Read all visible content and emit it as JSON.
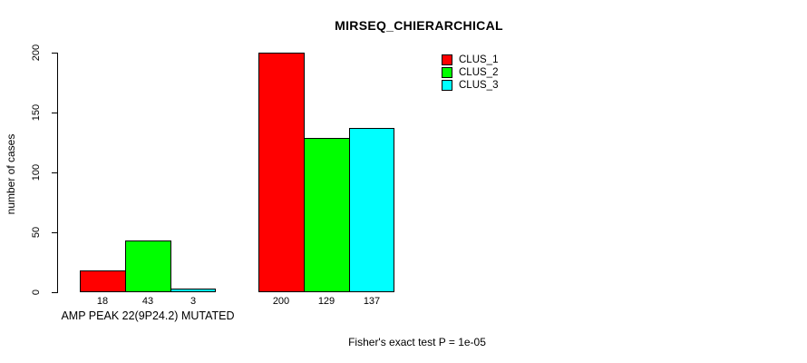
{
  "chart_data": {
    "type": "bar",
    "title": "MIRSEQ_CHIERARCHICAL",
    "xlabel": "",
    "ylabel": "number of cases",
    "ylim": [
      0,
      200
    ],
    "yticks": [
      0,
      50,
      100,
      150,
      200
    ],
    "grid": false,
    "legend_position": "top-right-inside",
    "categories": [
      "AMP PEAK 22(9P24.2) MUTATED",
      ""
    ],
    "series": [
      {
        "name": "CLUS_1",
        "color": "#ff0000",
        "values": [
          18,
          200
        ]
      },
      {
        "name": "CLUS_2",
        "color": "#00ff00",
        "values": [
          43,
          129
        ]
      },
      {
        "name": "CLUS_3",
        "color": "#00ffff",
        "values": [
          3,
          137
        ]
      }
    ],
    "bar_value_labels": [
      [
        18,
        43,
        3
      ],
      [
        200,
        129,
        137
      ]
    ],
    "annotation": "Fisher's exact test P = 1e-05"
  }
}
